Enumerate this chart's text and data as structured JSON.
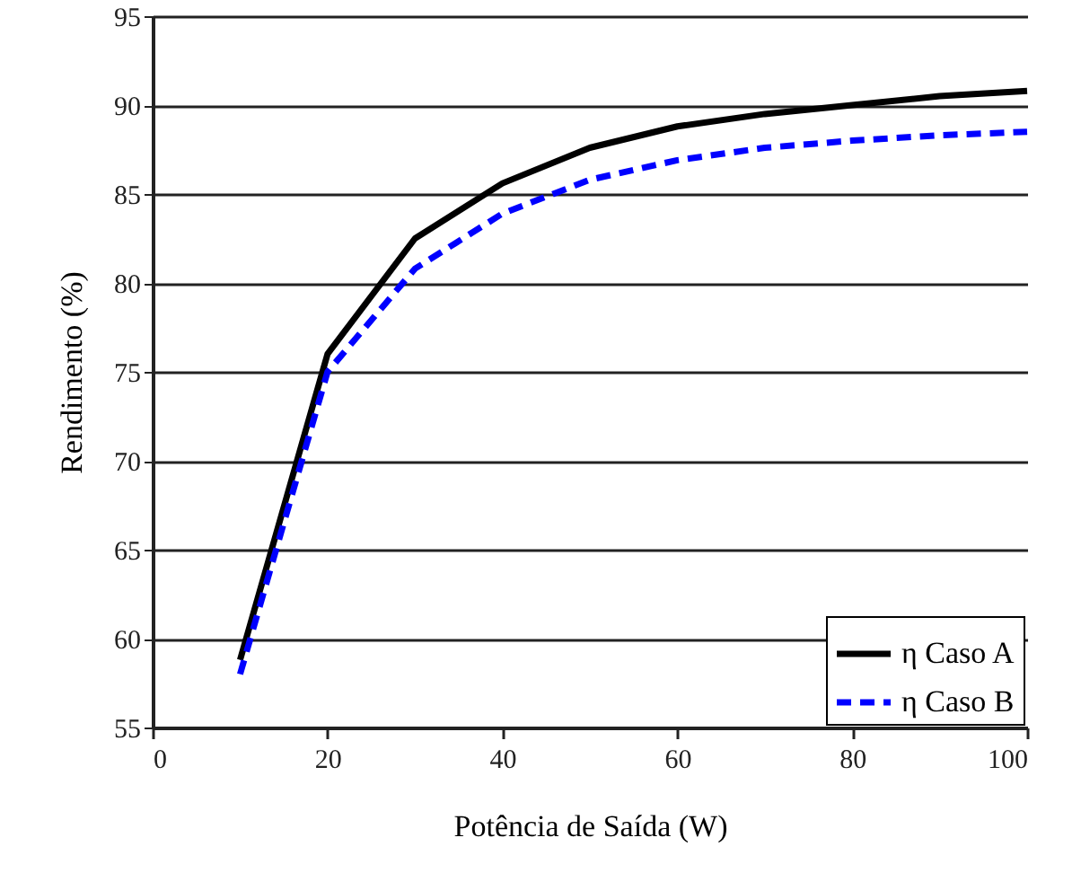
{
  "chart_data": {
    "type": "line",
    "xlabel": "Potência de Saída (W)",
    "ylabel": "Rendimento (%)",
    "x": [
      10,
      20,
      30,
      40,
      50,
      60,
      70,
      80,
      90,
      100
    ],
    "series": [
      {
        "name": "η Caso A",
        "color": "#000000",
        "line_style": "solid",
        "values": [
          58.8,
          76,
          82.5,
          85.6,
          87.6,
          88.8,
          89.5,
          90,
          90.5,
          90.8
        ]
      },
      {
        "name": "η Caso B",
        "color": "#0000ff",
        "line_style": "dashed",
        "values": [
          58,
          75,
          80.8,
          83.9,
          85.8,
          86.9,
          87.6,
          88,
          88.3,
          88.5
        ]
      }
    ],
    "xlim": [
      0,
      100
    ],
    "xticks": [
      0,
      20,
      40,
      60,
      80,
      100
    ],
    "ylim": [
      55,
      95
    ],
    "yticks": [
      55,
      60,
      65,
      70,
      75,
      80,
      85,
      90,
      95
    ],
    "grid": "y",
    "legend": "bottom right",
    "marker": "none"
  }
}
